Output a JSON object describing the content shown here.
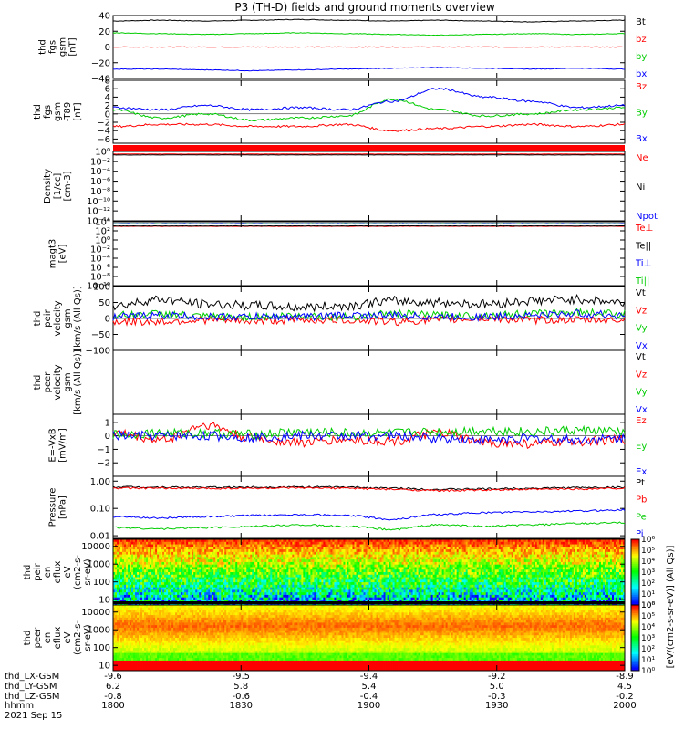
{
  "title": "P3 (TH-D) fields and ground moments overview",
  "time_axis": {
    "ticks": [
      "1800",
      "1830",
      "1900",
      "1930",
      "2000"
    ],
    "rows": [
      {
        "label": "thd_LX-GSM",
        "values": [
          "-9.6",
          "-9.5",
          "-9.4",
          "-9.2",
          "-8.9"
        ]
      },
      {
        "label": "thd_LY-GSM",
        "values": [
          "6.2",
          "5.8",
          "5.4",
          "5.0",
          "4.5"
        ]
      },
      {
        "label": "thd_LZ-GSM",
        "values": [
          "-0.8",
          "-0.6",
          "-0.4",
          "-0.3",
          "-0.2"
        ]
      },
      {
        "label": "hhmm",
        "values": [
          "1800",
          "1830",
          "1900",
          "1930",
          "2000"
        ]
      }
    ],
    "date": "2021 Sep 15"
  },
  "colorbar": {
    "ticks": [
      "10⁰",
      "10¹",
      "10²",
      "10³",
      "10⁴",
      "10⁵",
      "10⁶"
    ],
    "label": "[eV/(cm2-s-sr-eV)] (All Qs)]"
  },
  "chart_data": [
    {
      "type": "line",
      "ylabel": [
        "thd",
        "fgs",
        "gsm",
        "[nT]"
      ],
      "ylim": [
        -40,
        40
      ],
      "yticks": [
        "40",
        "20",
        "0",
        "−20",
        "−40"
      ],
      "series": [
        {
          "name": "Bt",
          "color": "#000000",
          "values": [
            33,
            34,
            33,
            34,
            35,
            34,
            33,
            34,
            33,
            32,
            33,
            34
          ]
        },
        {
          "name": "bz",
          "color": "#ff0000",
          "values": [
            0,
            0,
            0,
            0,
            0,
            0,
            0,
            0,
            0,
            0,
            0,
            0
          ]
        },
        {
          "name": "by",
          "color": "#00cc00",
          "values": [
            18,
            17,
            16,
            17,
            18,
            17,
            16,
            15,
            16,
            17,
            16,
            17
          ]
        },
        {
          "name": "bx",
          "color": "#0000ff",
          "values": [
            -28,
            -28,
            -29,
            -30,
            -29,
            -28,
            -27,
            -26,
            -27,
            -28,
            -27,
            -28
          ]
        }
      ]
    },
    {
      "type": "line",
      "ylabel": [
        "thd",
        "fgs",
        "gsm",
        "-T89",
        "[nT]"
      ],
      "ylim": [
        -7,
        8
      ],
      "yticks": [
        "8",
        "6",
        "4",
        "2",
        "0",
        "−2",
        "−4",
        "−6"
      ],
      "series": [
        {
          "name": "Bz",
          "color": "#ff0000",
          "values": [
            -3,
            -2.5,
            -2.5,
            -3,
            -3,
            -2.5,
            -4,
            -3.5,
            -3,
            -2.5,
            -3,
            -2.5
          ]
        },
        {
          "name": "By",
          "color": "#00cc00",
          "values": [
            1,
            -1,
            0,
            -1.5,
            -1,
            -0.5,
            3.5,
            1,
            -0.5,
            0,
            1,
            1.5
          ]
        },
        {
          "name": "Bx",
          "color": "#0000ff",
          "values": [
            1.5,
            1,
            2,
            1,
            1.5,
            1,
            3,
            6,
            4,
            3,
            1.5,
            2
          ]
        }
      ]
    },
    {
      "type": "line",
      "scale": "log",
      "ylabel": [
        "Density",
        "[1/cc]",
        "[cm-3]"
      ],
      "ylim": [
        1e-14,
        1
      ],
      "yticks": [
        "10⁰",
        "10⁻²",
        "10⁻⁴",
        "10⁻⁶",
        "10⁻⁸",
        "10⁻¹⁰",
        "10⁻¹²",
        "10⁻¹⁴"
      ],
      "series": [
        {
          "name": "Ne",
          "color": "#ff0000",
          "values": [
            0.3,
            0.3,
            0.3,
            0.3,
            0.3,
            0.3,
            0.3,
            0.3,
            0.3,
            0.3,
            0.3,
            0.3
          ]
        },
        {
          "name": "Ni",
          "color": "#000000",
          "values": [
            0.2,
            0.2,
            0.2,
            0.2,
            0.2,
            0.2,
            0.2,
            0.2,
            0.2,
            0.2,
            0.2,
            0.2
          ]
        },
        {
          "name": "Npot",
          "color": "#0000ff",
          "values": [
            null,
            null,
            null,
            null,
            null,
            null,
            null,
            null,
            null,
            null,
            null,
            null
          ]
        }
      ]
    },
    {
      "type": "line",
      "scale": "log",
      "ylabel": [
        "magt3",
        "[eV]"
      ],
      "ylim": [
        1e-10,
        10000
      ],
      "yticks": [
        "10⁴",
        "10²",
        "10⁰",
        "10⁻²",
        "10⁻⁴",
        "10⁻⁶",
        "10⁻⁸",
        "10⁻¹⁰"
      ],
      "series": [
        {
          "name": "Te⊥",
          "color": "#ff0000",
          "values": [
            1000,
            1000,
            1000,
            1000,
            1000,
            1000,
            1000,
            1000,
            1000,
            1000,
            1000,
            1000
          ]
        },
        {
          "name": "Te||",
          "color": "#000000",
          "values": [
            1200,
            1200,
            1200,
            1200,
            1200,
            1200,
            1200,
            1200,
            1200,
            1200,
            1200,
            1200
          ]
        },
        {
          "name": "Ti⊥",
          "color": "#0000ff",
          "values": [
            4000,
            4000,
            4000,
            4000,
            4000,
            4000,
            4000,
            4000,
            4000,
            4000,
            4000,
            4000
          ]
        },
        {
          "name": "Ti||",
          "color": "#00cc00",
          "values": [
            3500,
            3500,
            3500,
            3500,
            3500,
            3500,
            3500,
            3500,
            3500,
            3500,
            3500,
            3500
          ]
        }
      ]
    },
    {
      "type": "line",
      "ylabel": [
        "thd",
        "peir",
        "velocity",
        "gsm",
        "[km/s (All Qs)]"
      ],
      "ylim": [
        -100,
        100
      ],
      "yticks": [
        "100",
        "50",
        "0",
        "−50",
        "−100"
      ],
      "series": [
        {
          "name": "Vt",
          "color": "#000000",
          "values": [
            40,
            60,
            45,
            40,
            35,
            40,
            55,
            50,
            45,
            55,
            60,
            50
          ]
        },
        {
          "name": "Vz",
          "color": "#ff0000",
          "values": [
            -10,
            -10,
            -5,
            -8,
            -5,
            -5,
            -10,
            -5,
            0,
            -5,
            -5,
            -5
          ]
        },
        {
          "name": "Vy",
          "color": "#00cc00",
          "values": [
            10,
            15,
            5,
            5,
            10,
            5,
            15,
            10,
            10,
            15,
            20,
            15
          ]
        },
        {
          "name": "Vx",
          "color": "#0000ff",
          "values": [
            5,
            10,
            5,
            5,
            5,
            10,
            10,
            5,
            5,
            10,
            15,
            10
          ]
        }
      ]
    },
    {
      "type": "line",
      "ylabel": [
        "thd",
        "peer",
        "velocity",
        "gsm",
        "[km/s (All Qs)]"
      ],
      "series": [
        {
          "name": "Vt",
          "color": "#000000",
          "values": []
        },
        {
          "name": "Vz",
          "color": "#ff0000",
          "values": []
        },
        {
          "name": "Vy",
          "color": "#00cc00",
          "values": []
        },
        {
          "name": "Vx",
          "color": "#0000ff",
          "values": []
        }
      ]
    },
    {
      "type": "line",
      "ylabel": [
        "E=-VxB",
        "[mV/m]"
      ],
      "ylim": [
        -3,
        1.6
      ],
      "yticks": [
        "1",
        "0",
        "−1",
        "−2"
      ],
      "series": [
        {
          "name": "Ez",
          "color": "#ff0000",
          "values": [
            0.2,
            -0.3,
            0.8,
            -0.2,
            -0.5,
            -0.3,
            -0.4,
            0.2,
            -0.5,
            -0.6,
            -0.4,
            -0.3
          ]
        },
        {
          "name": "Ey",
          "color": "#00cc00",
          "values": [
            0.1,
            0.2,
            0.2,
            0.1,
            0.3,
            0.2,
            0.2,
            0.3,
            0.4,
            0.3,
            0.4,
            0.3
          ]
        },
        {
          "name": "Ex",
          "color": "#0000ff",
          "values": [
            0,
            0,
            0,
            -0.1,
            0,
            0,
            0,
            -0.2,
            -0.3,
            -0.2,
            -0.3,
            -0.2
          ]
        }
      ]
    },
    {
      "type": "line",
      "scale": "log",
      "ylabel": [
        "Pressure",
        "[nPa]"
      ],
      "ylim": [
        0.008,
        1.5
      ],
      "yticks": [
        "1.00",
        "0.10",
        "0.01"
      ],
      "series": [
        {
          "name": "Pt",
          "color": "#000000",
          "values": [
            0.62,
            0.6,
            0.59,
            0.6,
            0.61,
            0.6,
            0.55,
            0.5,
            0.52,
            0.55,
            0.58,
            0.6
          ]
        },
        {
          "name": "Pb",
          "color": "#ff0000",
          "values": [
            0.55,
            0.55,
            0.54,
            0.55,
            0.56,
            0.55,
            0.5,
            0.45,
            0.47,
            0.5,
            0.52,
            0.55
          ]
        },
        {
          "name": "Pe",
          "color": "#00cc00",
          "values": [
            0.02,
            0.018,
            0.02,
            0.022,
            0.025,
            0.022,
            0.017,
            0.025,
            0.022,
            0.025,
            0.028,
            0.03
          ]
        },
        {
          "name": "Pi",
          "color": "#0000ff",
          "values": [
            0.05,
            0.045,
            0.05,
            0.055,
            0.06,
            0.055,
            0.04,
            0.06,
            0.07,
            0.075,
            0.08,
            0.09
          ]
        }
      ]
    },
    {
      "type": "heatmap",
      "ylabel": [
        "thd",
        "peir",
        "en",
        "eflux",
        "eV",
        "(cm2-s-",
        "sr-eV)"
      ],
      "scale": "log",
      "ylim": [
        5,
        25000
      ],
      "yticks": [
        "10000",
        "1000",
        "100",
        "10"
      ]
    },
    {
      "type": "heatmap",
      "ylabel": [
        "thd",
        "peer",
        "en",
        "eflux",
        "eV",
        "(cm2-s-",
        "sr-eV)"
      ],
      "scale": "log",
      "ylim": [
        5,
        25000
      ],
      "yticks": [
        "10000",
        "1000",
        "100",
        "10"
      ]
    }
  ]
}
